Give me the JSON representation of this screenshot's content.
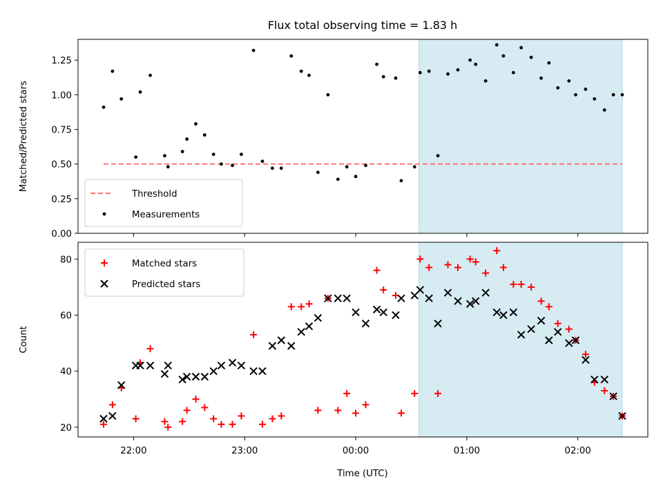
{
  "chart_data": {
    "title": "Flux total observing time = 1.83 h",
    "xlabel": "Time (UTC)",
    "x_unit": "hours (UTC, after 24:00 continues as 24+h)",
    "xlim": [
      21.5,
      26.63
    ],
    "xticks": [
      {
        "value": 22,
        "label": "22:00"
      },
      {
        "value": 23,
        "label": "23:00"
      },
      {
        "value": 24,
        "label": "00:00"
      },
      {
        "value": 25,
        "label": "01:00"
      },
      {
        "value": 26,
        "label": "02:00"
      }
    ],
    "shaded_span": {
      "x0": 24.57,
      "x1": 26.4,
      "color": "#add8e6"
    },
    "panels": [
      {
        "type": "scatter",
        "ylabel": "Matched/Predicted stars",
        "ylim": [
          0,
          1.4
        ],
        "yticks": [
          "0.00",
          "0.25",
          "0.50",
          "0.75",
          "1.00",
          "1.25"
        ],
        "threshold": {
          "name": "Threshold",
          "y": 0.5,
          "x0": 21.73,
          "x1": 26.4,
          "color": "#ff7070"
        },
        "legend": {
          "position": "lower-left",
          "entries": [
            "Threshold",
            "Measurements"
          ]
        },
        "series": [
          {
            "name": "Measurements",
            "marker": "dot",
            "color": "#000000",
            "points": [
              [
                21.73,
                0.91
              ],
              [
                21.81,
                1.17
              ],
              [
                21.89,
                0.97
              ],
              [
                22.02,
                0.55
              ],
              [
                22.06,
                1.02
              ],
              [
                22.15,
                1.14
              ],
              [
                22.28,
                0.56
              ],
              [
                22.31,
                0.48
              ],
              [
                22.44,
                0.59
              ],
              [
                22.48,
                0.68
              ],
              [
                22.56,
                0.79
              ],
              [
                22.64,
                0.71
              ],
              [
                22.72,
                0.57
              ],
              [
                22.79,
                0.5
              ],
              [
                22.89,
                0.49
              ],
              [
                22.97,
                0.57
              ],
              [
                23.08,
                1.32
              ],
              [
                23.16,
                0.52
              ],
              [
                23.25,
                0.47
              ],
              [
                23.33,
                0.47
              ],
              [
                23.42,
                1.28
              ],
              [
                23.51,
                1.17
              ],
              [
                23.58,
                1.14
              ],
              [
                23.66,
                0.44
              ],
              [
                23.75,
                1.0
              ],
              [
                23.84,
                0.39
              ],
              [
                23.92,
                0.48
              ],
              [
                24.0,
                0.41
              ],
              [
                24.09,
                0.49
              ],
              [
                24.19,
                1.22
              ],
              [
                24.25,
                1.13
              ],
              [
                24.36,
                1.12
              ],
              [
                24.41,
                0.38
              ],
              [
                24.53,
                0.48
              ],
              [
                24.58,
                1.16
              ],
              [
                24.66,
                1.17
              ],
              [
                24.74,
                0.56
              ],
              [
                24.83,
                1.15
              ],
              [
                24.92,
                1.18
              ],
              [
                25.03,
                1.25
              ],
              [
                25.08,
                1.22
              ],
              [
                25.17,
                1.1
              ],
              [
                25.27,
                1.36
              ],
              [
                25.33,
                1.28
              ],
              [
                25.42,
                1.16
              ],
              [
                25.49,
                1.34
              ],
              [
                25.58,
                1.27
              ],
              [
                25.67,
                1.12
              ],
              [
                25.74,
                1.23
              ],
              [
                25.82,
                1.05
              ],
              [
                25.92,
                1.1
              ],
              [
                25.98,
                1.0
              ],
              [
                26.07,
                1.04
              ],
              [
                26.15,
                0.97
              ],
              [
                26.24,
                0.89
              ],
              [
                26.32,
                1.0
              ],
              [
                26.4,
                1.0
              ]
            ]
          }
        ]
      },
      {
        "type": "scatter",
        "ylabel": "Count",
        "ylim": [
          16.5,
          86
        ],
        "yticks": [
          "20",
          "40",
          "60",
          "80"
        ],
        "legend": {
          "position": "top-left",
          "entries": [
            "Matched stars",
            "Predicted stars"
          ]
        },
        "series": [
          {
            "name": "Matched stars",
            "marker": "plus",
            "color": "#ff0000",
            "points": [
              [
                21.73,
                21
              ],
              [
                21.81,
                28
              ],
              [
                21.89,
                34
              ],
              [
                22.02,
                23
              ],
              [
                22.06,
                43
              ],
              [
                22.15,
                48
              ],
              [
                22.28,
                22
              ],
              [
                22.31,
                20
              ],
              [
                22.44,
                22
              ],
              [
                22.48,
                26
              ],
              [
                22.56,
                30
              ],
              [
                22.64,
                27
              ],
              [
                22.72,
                23
              ],
              [
                22.79,
                21
              ],
              [
                22.89,
                21
              ],
              [
                22.97,
                24
              ],
              [
                23.08,
                53
              ],
              [
                23.16,
                21
              ],
              [
                23.25,
                23
              ],
              [
                23.33,
                24
              ],
              [
                23.42,
                63
              ],
              [
                23.51,
                63
              ],
              [
                23.58,
                64
              ],
              [
                23.66,
                26
              ],
              [
                23.75,
                66
              ],
              [
                23.84,
                26
              ],
              [
                23.92,
                32
              ],
              [
                24.0,
                25
              ],
              [
                24.09,
                28
              ],
              [
                24.19,
                76
              ],
              [
                24.25,
                69
              ],
              [
                24.36,
                67
              ],
              [
                24.41,
                25
              ],
              [
                24.53,
                32
              ],
              [
                24.58,
                80
              ],
              [
                24.66,
                77
              ],
              [
                24.74,
                32
              ],
              [
                24.83,
                78
              ],
              [
                24.92,
                77
              ],
              [
                25.03,
                80
              ],
              [
                25.08,
                79
              ],
              [
                25.17,
                75
              ],
              [
                25.27,
                83
              ],
              [
                25.33,
                77
              ],
              [
                25.42,
                71
              ],
              [
                25.49,
                71
              ],
              [
                25.58,
                70
              ],
              [
                25.67,
                65
              ],
              [
                25.74,
                63
              ],
              [
                25.82,
                57
              ],
              [
                25.92,
                55
              ],
              [
                25.98,
                51
              ],
              [
                26.07,
                46
              ],
              [
                26.15,
                36
              ],
              [
                26.24,
                33
              ],
              [
                26.32,
                31
              ],
              [
                26.4,
                24
              ]
            ]
          },
          {
            "name": "Predicted stars",
            "marker": "x",
            "color": "#000000",
            "points": [
              [
                21.73,
                23
              ],
              [
                21.81,
                24
              ],
              [
                21.89,
                35
              ],
              [
                22.02,
                42
              ],
              [
                22.06,
                42
              ],
              [
                22.15,
                42
              ],
              [
                22.28,
                39
              ],
              [
                22.31,
                42
              ],
              [
                22.44,
                37
              ],
              [
                22.48,
                38
              ],
              [
                22.56,
                38
              ],
              [
                22.64,
                38
              ],
              [
                22.72,
                40
              ],
              [
                22.79,
                42
              ],
              [
                22.89,
                43
              ],
              [
                22.97,
                42
              ],
              [
                23.08,
                40
              ],
              [
                23.16,
                40
              ],
              [
                23.25,
                49
              ],
              [
                23.33,
                51
              ],
              [
                23.42,
                49
              ],
              [
                23.51,
                54
              ],
              [
                23.58,
                56
              ],
              [
                23.66,
                59
              ],
              [
                23.75,
                66
              ],
              [
                23.84,
                66
              ],
              [
                23.92,
                66
              ],
              [
                24.0,
                61
              ],
              [
                24.09,
                57
              ],
              [
                24.19,
                62
              ],
              [
                24.25,
                61
              ],
              [
                24.36,
                60
              ],
              [
                24.41,
                66
              ],
              [
                24.53,
                67
              ],
              [
                24.58,
                69
              ],
              [
                24.66,
                66
              ],
              [
                24.74,
                57
              ],
              [
                24.83,
                68
              ],
              [
                24.92,
                65
              ],
              [
                25.03,
                64
              ],
              [
                25.08,
                65
              ],
              [
                25.17,
                68
              ],
              [
                25.27,
                61
              ],
              [
                25.33,
                60
              ],
              [
                25.42,
                61
              ],
              [
                25.49,
                53
              ],
              [
                25.58,
                55
              ],
              [
                25.67,
                58
              ],
              [
                25.74,
                51
              ],
              [
                25.82,
                54
              ],
              [
                25.92,
                50
              ],
              [
                25.98,
                51
              ],
              [
                26.07,
                44
              ],
              [
                26.15,
                37
              ],
              [
                26.24,
                37
              ],
              [
                26.32,
                31
              ],
              [
                26.4,
                24
              ]
            ]
          }
        ]
      }
    ]
  }
}
